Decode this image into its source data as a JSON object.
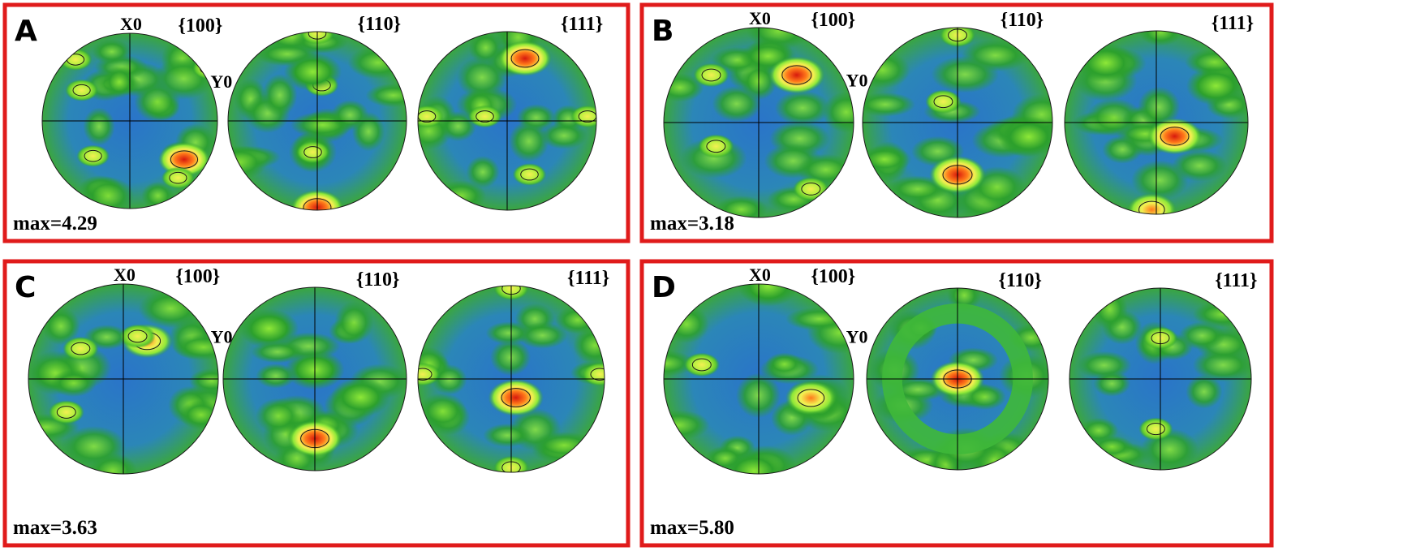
{
  "colors": {
    "frame": "#e01b1b",
    "low": "#1f4fd6",
    "mid": "#2ca02c",
    "high": "#8ee838",
    "peak_yellow": "#f3f052",
    "peak_orange": "#ff7a1a",
    "peak_red": "#d7190d"
  },
  "panels": [
    {
      "letter": "A",
      "max_label": "max=4.29",
      "planes": [
        "{100}",
        "{110}",
        "{111}"
      ],
      "axis_x": "X0",
      "axis_y": "Y0",
      "peaks": [
        [
          [
            0.62,
            0.44,
            "r"
          ],
          [
            -0.42,
            0.4,
            "y"
          ],
          [
            -0.62,
            -0.7,
            "y"
          ],
          [
            0.55,
            0.65,
            "y"
          ],
          [
            -0.55,
            -0.35,
            "y"
          ],
          [
            0.9,
            -0.6,
            "y"
          ]
        ],
        [
          [
            0.0,
            -0.98,
            "y"
          ],
          [
            0.05,
            -0.4,
            "y"
          ],
          [
            -0.05,
            0.35,
            "y"
          ],
          [
            0.0,
            0.97,
            "r"
          ],
          [
            -0.05,
            -0.55,
            "g"
          ]
        ],
        [
          [
            0.2,
            -0.7,
            "r"
          ],
          [
            0.25,
            0.6,
            "y"
          ],
          [
            -0.9,
            -0.05,
            "y"
          ],
          [
            -0.25,
            -0.05,
            "y"
          ],
          [
            0.9,
            -0.05,
            "y"
          ]
        ]
      ]
    },
    {
      "letter": "B",
      "max_label": "max=3.18",
      "planes": [
        "{100}",
        "{110}",
        "{111}"
      ],
      "axis_x": "X0",
      "axis_y": "Y0",
      "peaks": [
        [
          [
            0.4,
            -0.5,
            "r"
          ],
          [
            -0.5,
            -0.5,
            "y"
          ],
          [
            -0.45,
            0.25,
            "y"
          ],
          [
            0.55,
            0.7,
            "y"
          ]
        ],
        [
          [
            0.0,
            -0.92,
            "y"
          ],
          [
            -0.15,
            -0.22,
            "y"
          ],
          [
            0.0,
            0.55,
            "r"
          ],
          [
            0.75,
            0.15,
            "g"
          ]
        ],
        [
          [
            0.2,
            0.15,
            "r"
          ],
          [
            -0.05,
            0.95,
            "o"
          ],
          [
            -0.55,
            -0.65,
            "g"
          ],
          [
            0.65,
            -0.4,
            "g"
          ]
        ]
      ]
    },
    {
      "letter": "C",
      "max_label": "max=3.63",
      "planes": [
        "{100}",
        "{110}",
        "{111}"
      ],
      "axis_x": "X0",
      "axis_y": "Y0",
      "peaks": [
        [
          [
            0.25,
            -0.4,
            "o"
          ],
          [
            -0.45,
            -0.32,
            "y"
          ],
          [
            -0.6,
            0.35,
            "y"
          ],
          [
            0.15,
            -0.45,
            "y"
          ]
        ],
        [
          [
            0.0,
            0.65,
            "r"
          ],
          [
            0.0,
            -0.1,
            "g"
          ],
          [
            -0.5,
            -0.55,
            "g"
          ],
          [
            0.5,
            0.2,
            "g"
          ]
        ],
        [
          [
            0.05,
            0.2,
            "r"
          ],
          [
            0.0,
            -0.97,
            "y"
          ],
          [
            0.0,
            0.95,
            "y"
          ],
          [
            -0.95,
            -0.05,
            "y"
          ],
          [
            0.95,
            -0.05,
            "y"
          ]
        ]
      ]
    },
    {
      "letter": "D",
      "max_label": "max=5.80",
      "planes": [
        "{100}",
        "{110}",
        "{111}"
      ],
      "axis_x": "X0",
      "axis_y": "Y0",
      "peaks": [
        [
          [
            -0.6,
            -0.15,
            "y"
          ],
          [
            0.55,
            0.2,
            "o"
          ],
          [
            0.1,
            -0.98,
            "g"
          ],
          [
            -0.05,
            0.97,
            "g"
          ]
        ],
        [
          [
            0.0,
            0.0,
            "r"
          ]
        ],
        [
          [
            0.0,
            -0.45,
            "y"
          ],
          [
            -0.05,
            0.55,
            "y"
          ]
        ]
      ]
    }
  ]
}
